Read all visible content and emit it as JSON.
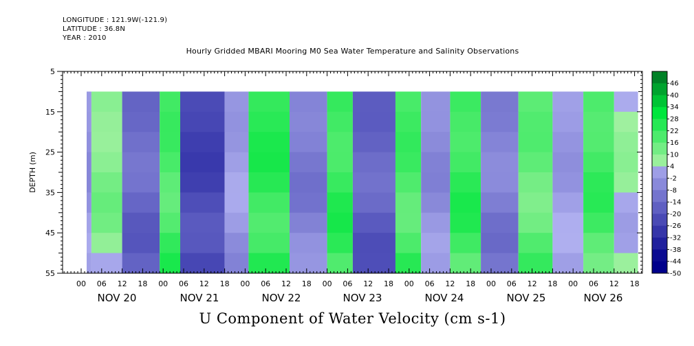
{
  "header": {
    "longitude": "LONGITUDE : 121.9W(-121.9)",
    "latitude": "LATITUDE : 36.8N",
    "year": "YEAR : 2010"
  },
  "chart_data": {
    "type": "heatmap",
    "title": "Hourly Gridded MBARI Mooring M0 Sea Water Temperature and Salinity Observations",
    "xlabel": "U Component of Water Velocity (cm s-1)",
    "ylabel": "DEPTH (m)",
    "ylim": [
      5,
      55
    ],
    "y_inverted": true,
    "y_ticks": [
      5,
      15,
      25,
      35,
      45,
      55
    ],
    "x_hour_ticks": [
      "00",
      "06",
      "12",
      "18",
      "00",
      "06",
      "12",
      "18",
      "00",
      "06",
      "12",
      "18",
      "00",
      "06",
      "12",
      "18",
      "00",
      "06",
      "12",
      "18",
      "00",
      "06",
      "12",
      "18",
      "00",
      "06",
      "12",
      "18"
    ],
    "x_day_labels": [
      "NOV 20",
      "NOV 21",
      "NOV 22",
      "NOV 23",
      "NOV 24",
      "NOV 25",
      "NOV 26"
    ],
    "x_start_hour_before_first_tick": 0,
    "data_depth_range": [
      10,
      55
    ],
    "colorbar": {
      "levels": [
        46,
        40,
        34,
        28,
        22,
        16,
        10,
        4,
        -2,
        -8,
        -14,
        -20,
        -26,
        -32,
        -38,
        -44,
        -50
      ],
      "low_color": "#00008b",
      "mid_color": "#b0b0f0",
      "zero_color": "#a0f0a0",
      "high_color": "#005a1e"
    },
    "column_profile": {
      "description_hours": "approximate dominant U velocity per time segment (cm s-1), from Nov 19 ~21h to Nov 26 ~19h",
      "segments": [
        {
          "hours": [
            0,
            12
          ],
          "value": -8
        },
        {
          "hours": [
            12,
            30
          ],
          "value": 4
        },
        {
          "hours": [
            30,
            52
          ],
          "value": -20
        },
        {
          "hours": [
            52,
            64
          ],
          "value": 14
        },
        {
          "hours": [
            64,
            90
          ],
          "value": -30
        },
        {
          "hours": [
            90,
            104
          ],
          "value": -6
        },
        {
          "hours": [
            104,
            128
          ],
          "value": 18
        },
        {
          "hours": [
            128,
            150
          ],
          "value": -14
        },
        {
          "hours": [
            150,
            165
          ],
          "value": 16
        },
        {
          "hours": [
            165,
            190
          ],
          "value": -22
        },
        {
          "hours": [
            190,
            205
          ],
          "value": 14
        },
        {
          "hours": [
            205,
            222
          ],
          "value": -10
        },
        {
          "hours": [
            222,
            240
          ],
          "value": 16
        },
        {
          "hours": [
            240,
            262
          ],
          "value": -14
        },
        {
          "hours": [
            262,
            282
          ],
          "value": 10
        },
        {
          "hours": [
            282,
            300
          ],
          "value": -6
        },
        {
          "hours": [
            300,
            318
          ],
          "value": 14
        },
        {
          "hours": [
            318,
            332
          ],
          "value": 0
        }
      ]
    }
  }
}
